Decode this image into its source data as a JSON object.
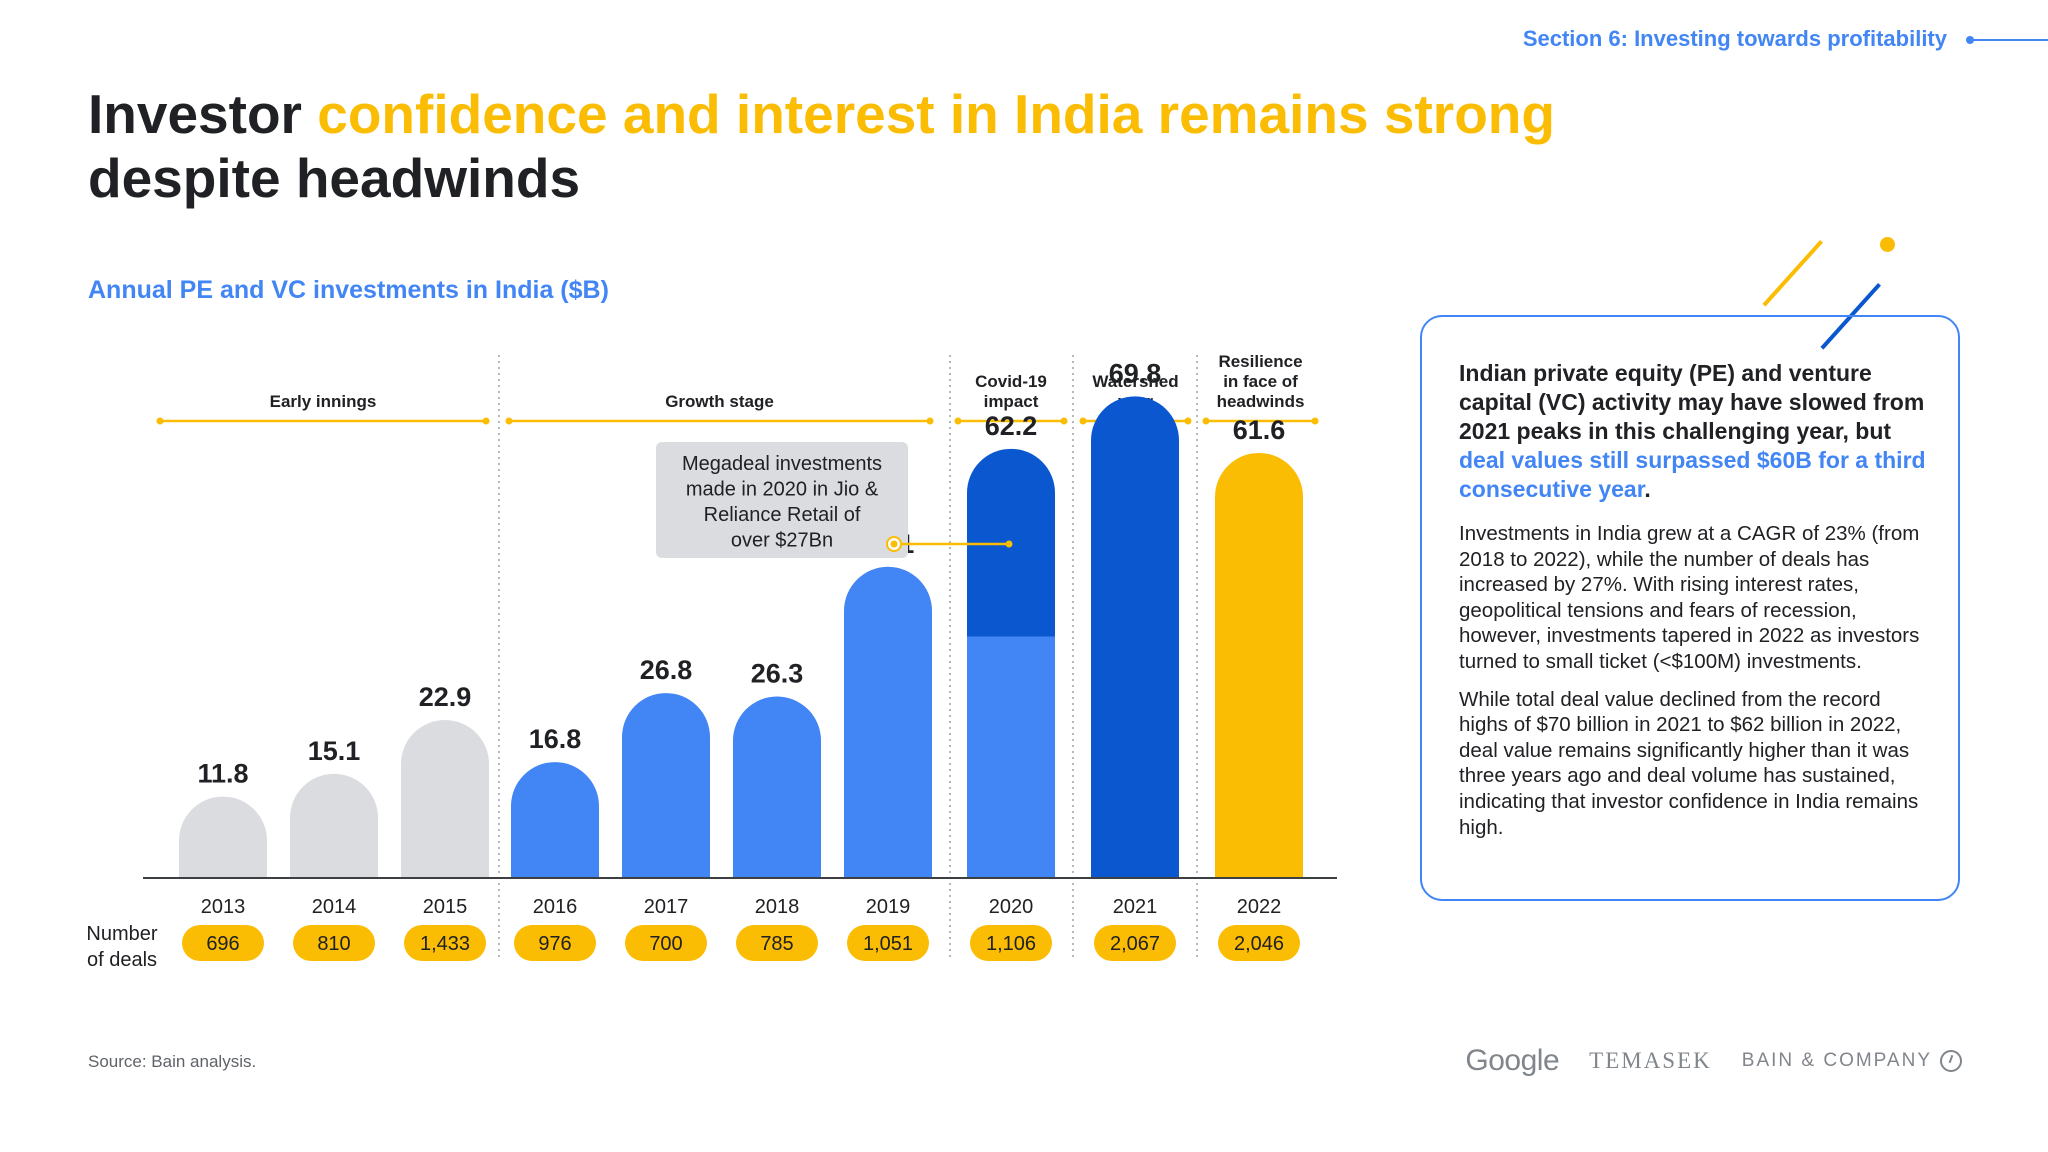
{
  "header": {
    "section_label": "Section 6: Investing towards profitability",
    "title_part1": "Investor ",
    "title_highlight": "confidence and interest in India remains strong",
    "title_part2": "despite headwinds"
  },
  "colors": {
    "blue": "#4285f4",
    "dark_blue": "#0b57d0",
    "yellow": "#fbbc04",
    "grey": "#dadce0"
  },
  "chart_data": {
    "type": "bar",
    "title": "Annual PE and VC investments in India ($B)",
    "categories": [
      "2013",
      "2014",
      "2015",
      "2016",
      "2017",
      "2018",
      "2019",
      "2020",
      "2021",
      "2022"
    ],
    "values": [
      11.8,
      15.1,
      22.9,
      16.8,
      26.8,
      26.3,
      45.1,
      62.2,
      69.8,
      61.6
    ],
    "value_labels": [
      "11.8",
      "15.1",
      "22.9",
      "16.8",
      "26.8",
      "26.3",
      "45.1",
      "62.2",
      "69.8",
      "61.6"
    ],
    "bar_colors": [
      "#dadce0",
      "#dadce0",
      "#dadce0",
      "#4285f4",
      "#4285f4",
      "#4285f4",
      "#4285f4",
      "#4285f4",
      "#0b57d0",
      "#fbbc04"
    ],
    "megadeal_2020_split": {
      "base": 35,
      "megadeal": 27.2,
      "colors": [
        "#4285f4",
        "#0b57d0"
      ]
    },
    "deals_label": "Number of deals",
    "deals": [
      "696",
      "810",
      "1,433",
      "976",
      "700",
      "785",
      "1,051",
      "1,106",
      "2,067",
      "2,046"
    ],
    "phases": [
      {
        "label": "Early innings",
        "from": 0,
        "to": 2
      },
      {
        "label": "Growth stage",
        "from": 3,
        "to": 6
      },
      {
        "label": "Covid-19 impact",
        "from": 7,
        "to": 7
      },
      {
        "label": "Watershed year",
        "from": 8,
        "to": 8
      },
      {
        "label": "Resilience in face of headwinds",
        "from": 9,
        "to": 9
      }
    ],
    "annotation": "Megadeal investments made in 2020 in Jio & Reliance Retail of over $27Bn",
    "ylim": [
      0,
      75
    ],
    "grid": false
  },
  "sidebar": {
    "headline_pre": "Indian private equity (PE) and venture capital (VC) activity may have slowed from 2021 peaks in this challenging year, but ",
    "headline_hl": "deal values still surpassed $60B for a third consecutive year",
    "headline_post": ".",
    "para1": "Investments in India grew at a CAGR of 23% (from 2018 to 2022), while the number of deals has increased by 27%. With rising interest rates, geopolitical tensions and fears of recession, however, investments tapered in 2022 as investors turned to small ticket (<$100M) investments.",
    "para2": "While total deal value declined from the record highs of $70 billion in 2021 to $62 billion in 2022, deal value remains significantly higher than it was three years ago and deal volume has sustained, indicating that investor confidence in India remains high."
  },
  "footer": {
    "source": "Source: Bain analysis.",
    "logo_google": "Google",
    "logo_temasek": "TEMASEK",
    "logo_bain": "BAIN & COMPANY"
  }
}
